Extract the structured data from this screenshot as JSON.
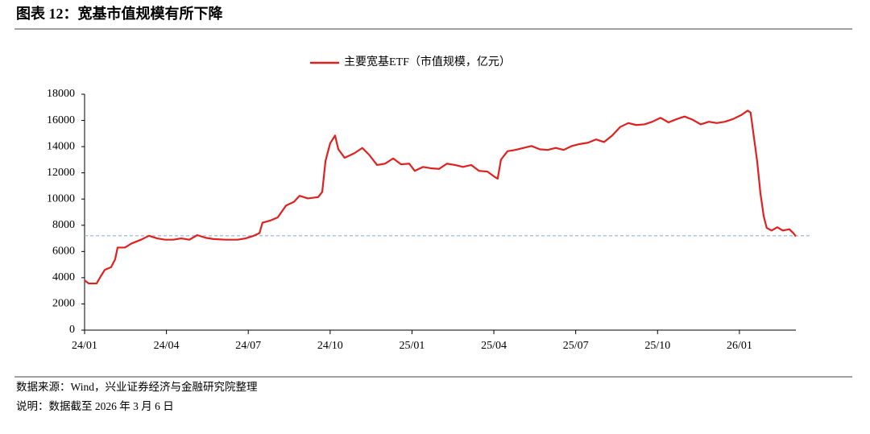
{
  "header": {
    "title": "图表 12：宽基市值规模有所下降"
  },
  "chart_data": {
    "type": "line",
    "x": [
      0,
      0.15,
      0.44,
      0.59,
      0.74,
      0.97,
      1.12,
      1.21,
      1.48,
      1.71,
      2.07,
      2.36,
      2.66,
      2.95,
      3.25,
      3.54,
      3.84,
      4.13,
      4.43,
      4.72,
      5.17,
      5.61,
      5.9,
      6.2,
      6.41,
      6.52,
      6.79,
      7.08,
      7.38,
      7.68,
      7.88,
      8.18,
      8.56,
      8.71,
      8.83,
      9.0,
      9.18,
      9.3,
      9.53,
      9.89,
      10.18,
      10.42,
      10.72,
      11.01,
      11.31,
      11.6,
      11.9,
      12.1,
      12.4,
      12.69,
      12.99,
      13.28,
      13.58,
      13.87,
      14.17,
      14.46,
      14.76,
      15.06,
      15.14,
      15.26,
      15.5,
      15.79,
      16.09,
      16.38,
      16.68,
      16.97,
      17.27,
      17.56,
      17.86,
      18.15,
      18.45,
      18.75,
      19.04,
      19.34,
      19.63,
      19.93,
      20.22,
      20.52,
      20.81,
      21.11,
      21.4,
      21.7,
      21.99,
      22.29,
      22.58,
      22.88,
      23.17,
      23.47,
      23.76,
      24.06,
      24.3,
      24.41,
      24.53,
      24.65,
      24.77,
      24.89,
      25.0,
      25.18,
      25.39,
      25.59,
      25.83,
      25.98,
      26.07
    ],
    "series": [
      {
        "name": "主要宽基ETF（市值规模，亿元）",
        "color": "#e0201e",
        "values": [
          3800,
          3560,
          3560,
          4100,
          4600,
          4800,
          5400,
          6300,
          6300,
          6600,
          6900,
          7200,
          7000,
          6900,
          6900,
          7000,
          6900,
          7250,
          7050,
          6950,
          6900,
          6900,
          7000,
          7200,
          7400,
          8200,
          8350,
          8600,
          9500,
          9800,
          10250,
          10050,
          10150,
          10550,
          12900,
          14250,
          14850,
          13800,
          13150,
          13500,
          13900,
          13400,
          12600,
          12700,
          13100,
          12650,
          12700,
          12150,
          12450,
          12350,
          12300,
          12700,
          12600,
          12450,
          12600,
          12150,
          12100,
          11650,
          11550,
          13000,
          13650,
          13750,
          13900,
          14050,
          13800,
          13750,
          13900,
          13750,
          14050,
          14200,
          14300,
          14550,
          14350,
          14850,
          15500,
          15800,
          15650,
          15700,
          15900,
          16200,
          15850,
          16100,
          16300,
          16050,
          15700,
          15900,
          15800,
          15900,
          16100,
          16400,
          16750,
          16600,
          14750,
          12900,
          10450,
          8700,
          7800,
          7600,
          7850,
          7600,
          7700,
          7400,
          7150
        ]
      }
    ],
    "xlim": [
      0,
      26.07
    ],
    "xticks": [
      {
        "value": 0,
        "label": "24/01"
      },
      {
        "value": 3,
        "label": "24/04"
      },
      {
        "value": 6,
        "label": "24/07"
      },
      {
        "value": 9,
        "label": "24/10"
      },
      {
        "value": 12,
        "label": "25/01"
      },
      {
        "value": 15,
        "label": "25/04"
      },
      {
        "value": 18,
        "label": "25/07"
      },
      {
        "value": 21,
        "label": "25/10"
      },
      {
        "value": 24,
        "label": "26/01"
      }
    ],
    "ylim": [
      0,
      18000
    ],
    "yticks": [
      0,
      2000,
      4000,
      6000,
      8000,
      10000,
      12000,
      14000,
      16000,
      18000
    ],
    "reference_line": {
      "value": 7200,
      "color": "#8fb0d6"
    },
    "grid": false,
    "legend": "top"
  },
  "footer": {
    "source": "数据来源：Wind，兴业证券经济与金融研究院整理",
    "note": "说明：数据截至 2026 年 3 月 6 日"
  }
}
